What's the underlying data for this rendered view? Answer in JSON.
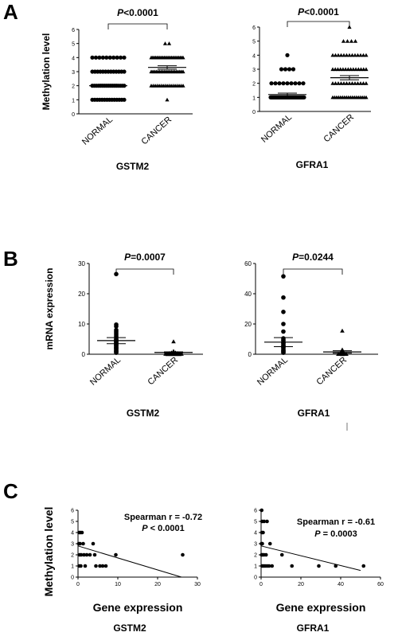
{
  "panels": [
    {
      "letter": "A"
    },
    {
      "letter": "B"
    },
    {
      "letter": "C"
    }
  ],
  "chart_data": [
    {
      "panel": "A",
      "type": "scatter",
      "subtype": "dot-plot",
      "title": "GSTM2",
      "ylabel": "Methylation level",
      "categories": [
        "NORMAL",
        "CANCER"
      ],
      "ylim": [
        0,
        6
      ],
      "yticks": [
        0,
        1,
        2,
        3,
        4,
        5,
        6
      ],
      "significance": "P<0.0001",
      "markers": [
        "circle",
        "triangle"
      ],
      "series": [
        {
          "values": [
            1,
            1,
            1,
            1,
            1,
            1,
            1,
            1,
            1,
            1,
            1,
            1,
            1,
            1,
            2,
            2,
            2,
            2,
            2,
            2,
            2,
            2,
            2,
            2,
            2,
            2,
            2,
            2,
            2,
            2,
            2,
            3,
            3,
            3,
            3,
            3,
            3,
            3,
            3,
            3,
            3,
            3,
            3,
            3,
            4,
            4,
            4,
            4,
            4,
            4,
            4,
            4,
            4,
            4
          ],
          "mean": 2.0,
          "sem": 0.1
        },
        {
          "values": [
            1,
            2,
            2,
            2,
            2,
            2,
            2,
            2,
            2,
            2,
            2,
            2,
            2,
            2,
            2,
            2,
            2,
            2,
            3,
            3,
            3,
            3,
            3,
            3,
            3,
            3,
            3,
            3,
            3,
            3,
            3,
            3,
            3,
            3,
            3,
            3,
            3,
            3,
            4,
            4,
            4,
            4,
            4,
            4,
            4,
            4,
            4,
            4,
            4,
            4,
            4,
            4,
            4,
            4,
            4,
            4,
            4,
            4,
            4,
            4,
            4,
            5,
            5
          ],
          "mean": 3.3,
          "sem": 0.12
        }
      ]
    },
    {
      "panel": "A",
      "type": "scatter",
      "subtype": "dot-plot",
      "title": "GFRA1",
      "ylabel": "",
      "categories": [
        "NORMAL",
        "CANCER"
      ],
      "ylim": [
        0,
        6
      ],
      "yticks": [
        0,
        1,
        2,
        3,
        4,
        5,
        6
      ],
      "significance": "P<0.0001",
      "markers": [
        "circle",
        "triangle"
      ],
      "series": [
        {
          "values": [
            1,
            1,
            1,
            1,
            1,
            1,
            1,
            1,
            1,
            1,
            1,
            1,
            1,
            1,
            1,
            1,
            1,
            1,
            1,
            1,
            1,
            1,
            1,
            1,
            1,
            1,
            1,
            1,
            1,
            1,
            1,
            1,
            1,
            1,
            1,
            1,
            1,
            1,
            2,
            2,
            2,
            2,
            2,
            2,
            2,
            2,
            2,
            3,
            3,
            3,
            3,
            4
          ],
          "mean": 1.2,
          "sem": 0.1
        },
        {
          "values": [
            1,
            1,
            1,
            1,
            1,
            1,
            1,
            1,
            1,
            1,
            1,
            1,
            1,
            1,
            1,
            1,
            1,
            1,
            2,
            2,
            2,
            2,
            2,
            2,
            2,
            2,
            2,
            2,
            2,
            2,
            2,
            3,
            3,
            3,
            3,
            3,
            3,
            3,
            3,
            3,
            3,
            3,
            3,
            3,
            3,
            4,
            4,
            4,
            4,
            4,
            4,
            4,
            4,
            4,
            4,
            4,
            4,
            4,
            5,
            5,
            5,
            5,
            6
          ],
          "mean": 2.4,
          "sem": 0.15
        }
      ]
    },
    {
      "panel": "B",
      "type": "scatter",
      "subtype": "dot-plot",
      "title": "GSTM2",
      "ylabel": "mRNA expression",
      "categories": [
        "NORMAL",
        "CANCER"
      ],
      "ylim": [
        0,
        30
      ],
      "yticks": [
        0,
        10,
        20,
        30
      ],
      "significance": "P=0.0007",
      "markers": [
        "circle",
        "triangle"
      ],
      "series": [
        {
          "values": [
            26.5,
            9.8,
            9.2,
            8.0,
            7.5,
            7.0,
            6.5,
            6.0,
            5.5,
            5.0,
            4.8,
            4.5,
            4.2,
            4.0,
            3.8,
            3.5,
            3.2,
            3.0,
            2.8,
            2.5,
            2.2,
            2.0,
            1.8,
            1.5,
            1.2,
            1.0,
            0.8,
            0.5
          ],
          "mean": 4.5,
          "sem": 1.0
        },
        {
          "values": [
            4.2,
            1.0,
            0.9,
            0.8,
            0.7,
            0.6,
            0.5,
            0.5,
            0.4,
            0.4,
            0.3,
            0.3,
            0.3,
            0.2,
            0.2,
            0.2,
            0.2,
            0.1,
            0.1,
            0.1,
            0.1,
            0.1,
            0.0,
            0.0,
            0.0,
            0.0
          ],
          "mean": 0.6,
          "sem": 0.2
        }
      ]
    },
    {
      "panel": "B",
      "type": "scatter",
      "subtype": "dot-plot",
      "title": "GFRA1",
      "ylabel": "",
      "categories": [
        "NORMAL",
        "CANCER"
      ],
      "ylim": [
        0,
        60
      ],
      "yticks": [
        0,
        20,
        40,
        60
      ],
      "significance": "P=0.0244",
      "markers": [
        "circle",
        "triangle"
      ],
      "series": [
        {
          "values": [
            51.5,
            37.5,
            28.0,
            20.0,
            15.0,
            10.5,
            9.5,
            9.0,
            8.0,
            7.5,
            7.0,
            6.0,
            5.5,
            5.0,
            4.5,
            4.0,
            3.0,
            2.5,
            2.0,
            1.5,
            1.0
          ],
          "mean": 8.0,
          "sem": 3.0
        },
        {
          "values": [
            15.5,
            3.0,
            2.5,
            2.0,
            1.8,
            1.5,
            1.2,
            1.0,
            0.8,
            0.7,
            0.6,
            0.5,
            0.5,
            0.4,
            0.3,
            0.3,
            0.2,
            0.2,
            0.1,
            0.1,
            0.1,
            0.0
          ],
          "mean": 1.5,
          "sem": 0.8
        }
      ]
    },
    {
      "panel": "C",
      "type": "scatter",
      "title": "GSTM2",
      "ylabel": "Methylation level",
      "xlabel": "Gene expression",
      "xlim": [
        0,
        30
      ],
      "xticks": [
        0,
        10,
        20,
        30
      ],
      "ylim": [
        0,
        6
      ],
      "yticks": [
        0,
        1,
        2,
        3,
        4,
        5,
        6
      ],
      "stat_lines": [
        "Spearman r = -0.72",
        "P <  0.0001"
      ],
      "trendline": {
        "x": [
          0,
          26
        ],
        "y": [
          2.8,
          0.0
        ]
      },
      "points": [
        [
          0.3,
          4
        ],
        [
          0.6,
          4
        ],
        [
          1.0,
          4
        ],
        [
          0.2,
          3
        ],
        [
          0.5,
          3
        ],
        [
          1.3,
          3
        ],
        [
          3.8,
          3
        ],
        [
          0.4,
          2
        ],
        [
          0.8,
          2
        ],
        [
          1.5,
          2
        ],
        [
          2.2,
          2
        ],
        [
          3.0,
          2
        ],
        [
          4.2,
          2
        ],
        [
          9.5,
          2
        ],
        [
          26.3,
          2
        ],
        [
          0.3,
          1
        ],
        [
          0.7,
          1
        ],
        [
          1.8,
          1
        ],
        [
          4.5,
          1
        ],
        [
          5.5,
          1
        ],
        [
          6.2,
          1
        ],
        [
          7.0,
          1
        ]
      ]
    },
    {
      "panel": "C",
      "type": "scatter",
      "title": "GFRA1",
      "ylabel": "",
      "xlabel": "Gene expression",
      "xlim": [
        0,
        60
      ],
      "xticks": [
        0,
        20,
        40,
        60
      ],
      "ylim": [
        0,
        6
      ],
      "yticks": [
        0,
        1,
        2,
        3,
        4,
        5,
        6
      ],
      "stat_lines": [
        "Spearman r = -0.61",
        "P =  0.0003"
      ],
      "trendline": {
        "x": [
          0,
          50
        ],
        "y": [
          2.8,
          0.6
        ]
      },
      "points": [
        [
          0.3,
          6
        ],
        [
          0.5,
          5
        ],
        [
          1.5,
          5
        ],
        [
          3.0,
          5
        ],
        [
          0.4,
          4
        ],
        [
          1.0,
          4
        ],
        [
          0.2,
          3
        ],
        [
          0.6,
          3
        ],
        [
          4.5,
          3
        ],
        [
          0.3,
          2
        ],
        [
          0.8,
          2
        ],
        [
          1.5,
          2
        ],
        [
          2.5,
          2
        ],
        [
          10.5,
          2
        ],
        [
          0.5,
          1
        ],
        [
          1.2,
          1
        ],
        [
          2.0,
          1
        ],
        [
          3.0,
          1
        ],
        [
          4.0,
          1
        ],
        [
          5.5,
          1
        ],
        [
          15.5,
          1
        ],
        [
          29.0,
          1
        ],
        [
          37.5,
          1
        ],
        [
          51.5,
          1
        ]
      ]
    }
  ]
}
